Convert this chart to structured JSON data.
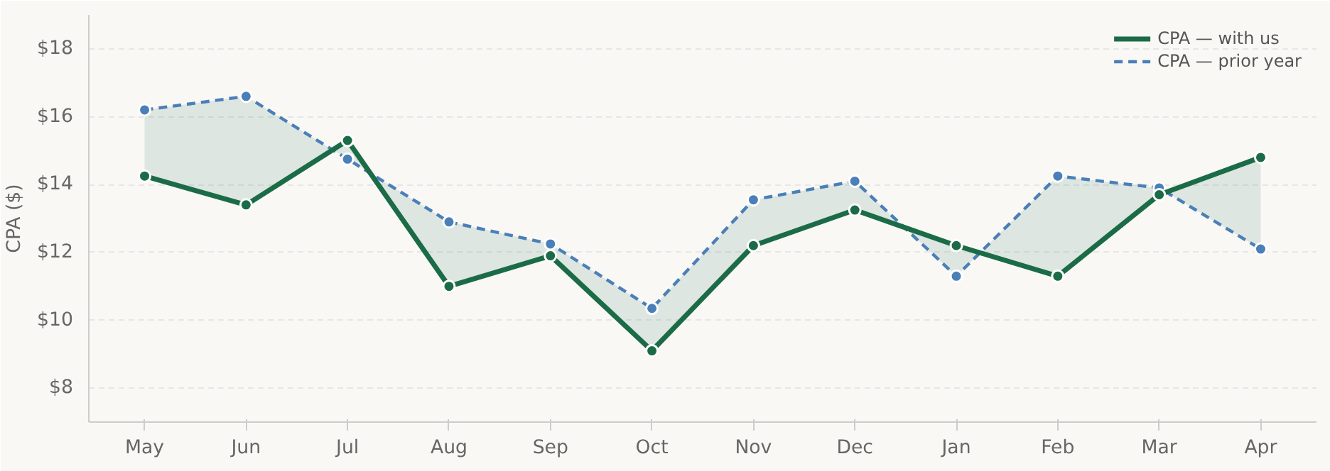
{
  "chart_data": {
    "type": "line",
    "ylabel": "CPA ($)",
    "categories": [
      "May",
      "Jun",
      "Jul",
      "Aug",
      "Sep",
      "Oct",
      "Nov",
      "Dec",
      "Jan",
      "Feb",
      "Mar",
      "Apr"
    ],
    "series": [
      {
        "name": "CPA — with us",
        "color": "#1b6b47",
        "line_style": "solid",
        "values": [
          14.25,
          13.4,
          15.3,
          11.0,
          11.9,
          9.1,
          12.2,
          13.25,
          12.2,
          11.3,
          13.7,
          14.8
        ],
        "lower": [
          14.25,
          13.4,
          15.3,
          11.0,
          11.9,
          9.1,
          12.2,
          13.25,
          12.2,
          11.3,
          13.7,
          14.8
        ],
        "upper": [
          16.2,
          16.6,
          14.75,
          12.9,
          12.25,
          10.35,
          13.55,
          14.1,
          11.3,
          14.25,
          13.9,
          12.1
        ]
      },
      {
        "name": "CPA — prior year",
        "color": "#4a7fb8",
        "line_style": "dashed",
        "values": [
          16.2,
          16.6,
          14.75,
          12.9,
          12.25,
          10.35,
          13.55,
          14.1,
          11.3,
          14.25,
          13.9,
          12.1
        ]
      }
    ],
    "ylim": [
      7,
      19
    ],
    "yticks": [
      {
        "value": 8,
        "label": "$8"
      },
      {
        "value": 10,
        "label": "$10"
      },
      {
        "value": 12,
        "label": "$12"
      },
      {
        "value": 14,
        "label": "$14"
      },
      {
        "value": 16,
        "label": "$16"
      },
      {
        "value": 18,
        "label": "$18"
      }
    ],
    "grid": "y",
    "legend": "top right",
    "marker": "circle"
  }
}
